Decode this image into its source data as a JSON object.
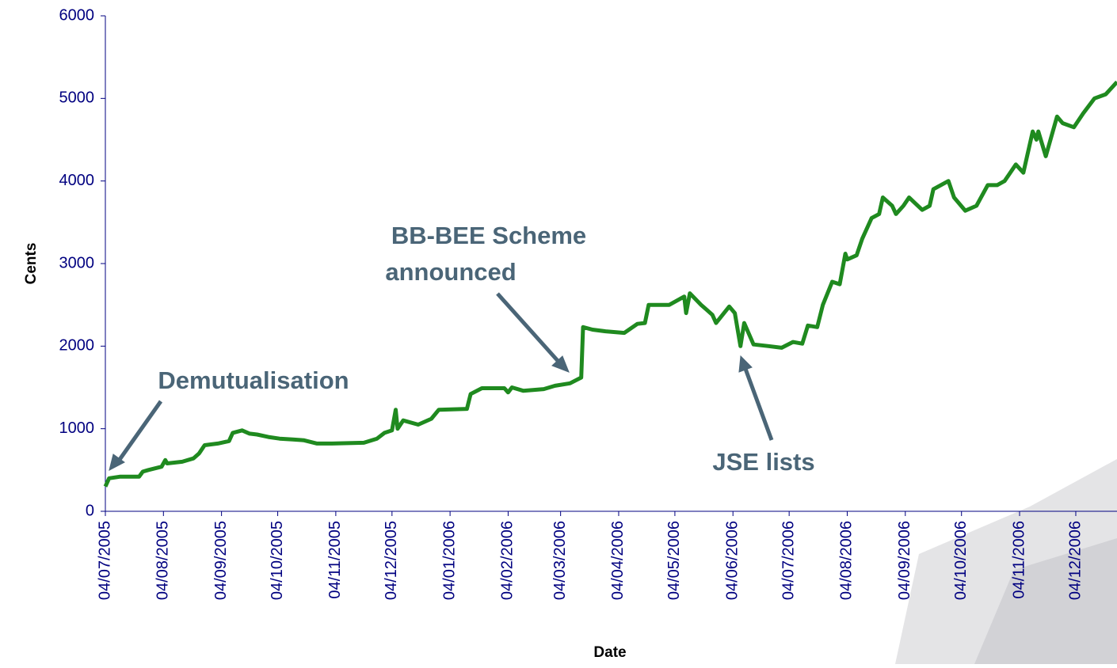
{
  "chart_data": {
    "type": "line",
    "y_label": "Cents",
    "x_label": "Date",
    "color": "#1f8a1f",
    "annotations": [
      "Demutualisation",
      "BB-BEE Scheme announced",
      "JSE lists"
    ],
    "xlim": [
      "04/07/2005",
      "26/12/2006"
    ],
    "xticks": [
      "04/07/2005",
      "04/08/2005",
      "04/09/2005",
      "04/10/2005",
      "04/11/2005",
      "04/12/2005",
      "04/01/2006",
      "04/02/2006",
      "04/03/2006",
      "04/04/2006",
      "04/05/2006",
      "04/06/2006",
      "04/07/2006",
      "04/08/2006",
      "04/09/2006",
      "04/10/2006",
      "04/11/2006",
      "04/12/2006"
    ],
    "ylim": [
      0,
      6000
    ],
    "yticks": [
      0,
      1000,
      2000,
      3000,
      4000,
      5000,
      6000
    ],
    "x": [
      "04/07/2005",
      "06/07/2005",
      "12/07/2005",
      "22/07/2005",
      "24/07/2005",
      "27/07/2005",
      "03/08/2005",
      "05/08/2005",
      "06/08/2005",
      "14/08/2005",
      "20/08/2005",
      "23/08/2005",
      "26/08/2005",
      "02/09/2005",
      "08/09/2005",
      "10/09/2005",
      "15/09/2005",
      "19/09/2005",
      "23/09/2005",
      "29/09/2005",
      "05/10/2005",
      "12/10/2005",
      "18/10/2005",
      "25/10/2005",
      "02/11/2005",
      "19/11/2005",
      "26/11/2005",
      "30/11/2005",
      "04/12/2005",
      "06/12/2005",
      "07/12/2005",
      "10/12/2005",
      "18/12/2005",
      "25/12/2005",
      "29/12/2005",
      "13/01/2006",
      "15/01/2006",
      "21/01/2006",
      "02/02/2006",
      "04/02/2006",
      "06/02/2006",
      "12/02/2006",
      "23/02/2006",
      "01/03/2006",
      "09/03/2006",
      "15/03/2006",
      "16/03/2006",
      "21/03/2006",
      "28/03/2006",
      "07/04/2006",
      "14/04/2006",
      "18/04/2006",
      "20/04/2006",
      "01/05/2006",
      "09/05/2006",
      "10/05/2006",
      "12/05/2006",
      "18/05/2006",
      "24/05/2006",
      "26/05/2006",
      "02/06/2006",
      "05/06/2006",
      "08/06/2006",
      "10/06/2006",
      "15/06/2006",
      "23/06/2006",
      "30/06/2006",
      "06/07/2006",
      "11/07/2006",
      "14/07/2006",
      "19/07/2006",
      "22/07/2006",
      "27/07/2006",
      "31/07/2006",
      "03/08/2006",
      "04/08/2006",
      "09/08/2006",
      "12/08/2006",
      "17/08/2006",
      "21/08/2006",
      "23/08/2006",
      "28/08/2006",
      "30/08/2006",
      "03/09/2006",
      "06/09/2006",
      "13/09/2006",
      "17/09/2006",
      "19/09/2006",
      "27/09/2006",
      "30/09/2006",
      "06/10/2006",
      "12/10/2006",
      "18/10/2006",
      "23/10/2006",
      "27/10/2006",
      "02/11/2006",
      "06/11/2006",
      "11/11/2006",
      "13/11/2006",
      "14/11/2006",
      "18/11/2006",
      "24/11/2006",
      "27/11/2006",
      "03/12/2006",
      "08/12/2006",
      "14/12/2006",
      "20/12/2006",
      "26/12/2006"
    ],
    "values": [
      300,
      400,
      420,
      420,
      480,
      500,
      540,
      620,
      580,
      600,
      640,
      700,
      800,
      820,
      850,
      950,
      980,
      940,
      930,
      900,
      880,
      870,
      860,
      820,
      820,
      830,
      880,
      950,
      980,
      1230,
      1000,
      1100,
      1050,
      1120,
      1230,
      1240,
      1420,
      1490,
      1490,
      1440,
      1500,
      1460,
      1480,
      1520,
      1550,
      1620,
      2230,
      2200,
      2180,
      2160,
      2270,
      2280,
      2500,
      2500,
      2600,
      2400,
      2640,
      2500,
      2380,
      2280,
      2480,
      2400,
      2000,
      2280,
      2020,
      2000,
      1980,
      2050,
      2030,
      2250,
      2230,
      2500,
      2780,
      2750,
      3120,
      3050,
      3100,
      3300,
      3550,
      3600,
      3800,
      3700,
      3600,
      3700,
      3800,
      3650,
      3700,
      3900,
      4000,
      3800,
      3640,
      3700,
      3950,
      3950,
      4000,
      4200,
      4100,
      4600,
      4500,
      4600,
      4300,
      4780,
      4700,
      4650,
      4820,
      5000,
      5050,
      5200
    ]
  }
}
